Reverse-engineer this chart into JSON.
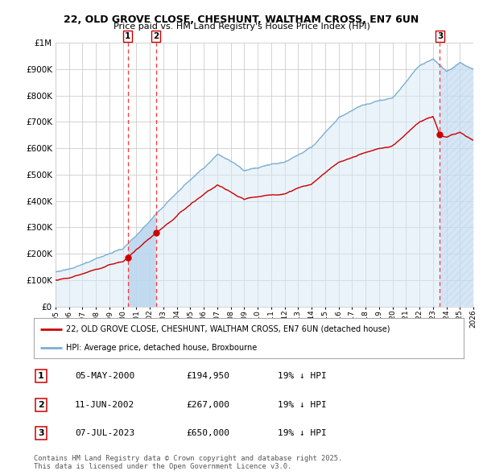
{
  "title_line1": "22, OLD GROVE CLOSE, CHESHUNT, WALTHAM CROSS, EN7 6UN",
  "title_line2": "Price paid vs. HM Land Registry's House Price Index (HPI)",
  "ytick_values": [
    0,
    100000,
    200000,
    300000,
    400000,
    500000,
    600000,
    700000,
    800000,
    900000,
    1000000
  ],
  "xmin": 1995.0,
  "xmax": 2026.0,
  "ymin": 0,
  "ymax": 1000000,
  "sale1": {
    "date_num": 2000.36,
    "price": 194950,
    "label": "1",
    "date_str": "05-MAY-2000",
    "pct": "19% ↓ HPI"
  },
  "sale2": {
    "date_num": 2002.44,
    "price": 267000,
    "label": "2",
    "date_str": "11-JUN-2002",
    "pct": "19% ↓ HPI"
  },
  "sale3": {
    "date_num": 2023.52,
    "price": 650000,
    "label": "3",
    "date_str": "07-JUL-2023",
    "pct": "19% ↓ HPI"
  },
  "background_color": "#ffffff",
  "grid_color": "#cccccc",
  "red_line_color": "#cc0000",
  "blue_line_color": "#7aafd4",
  "blue_fill_color": "#d6e8f7",
  "dashed_line_color": "#ff3333",
  "legend_label_red": "22, OLD GROVE CLOSE, CHESHUNT, WALTHAM CROSS, EN7 6UN (detached house)",
  "legend_label_blue": "HPI: Average price, detached house, Broxbourne",
  "footer": "Contains HM Land Registry data © Crown copyright and database right 2025.\nThis data is licensed under the Open Government Licence v3.0."
}
